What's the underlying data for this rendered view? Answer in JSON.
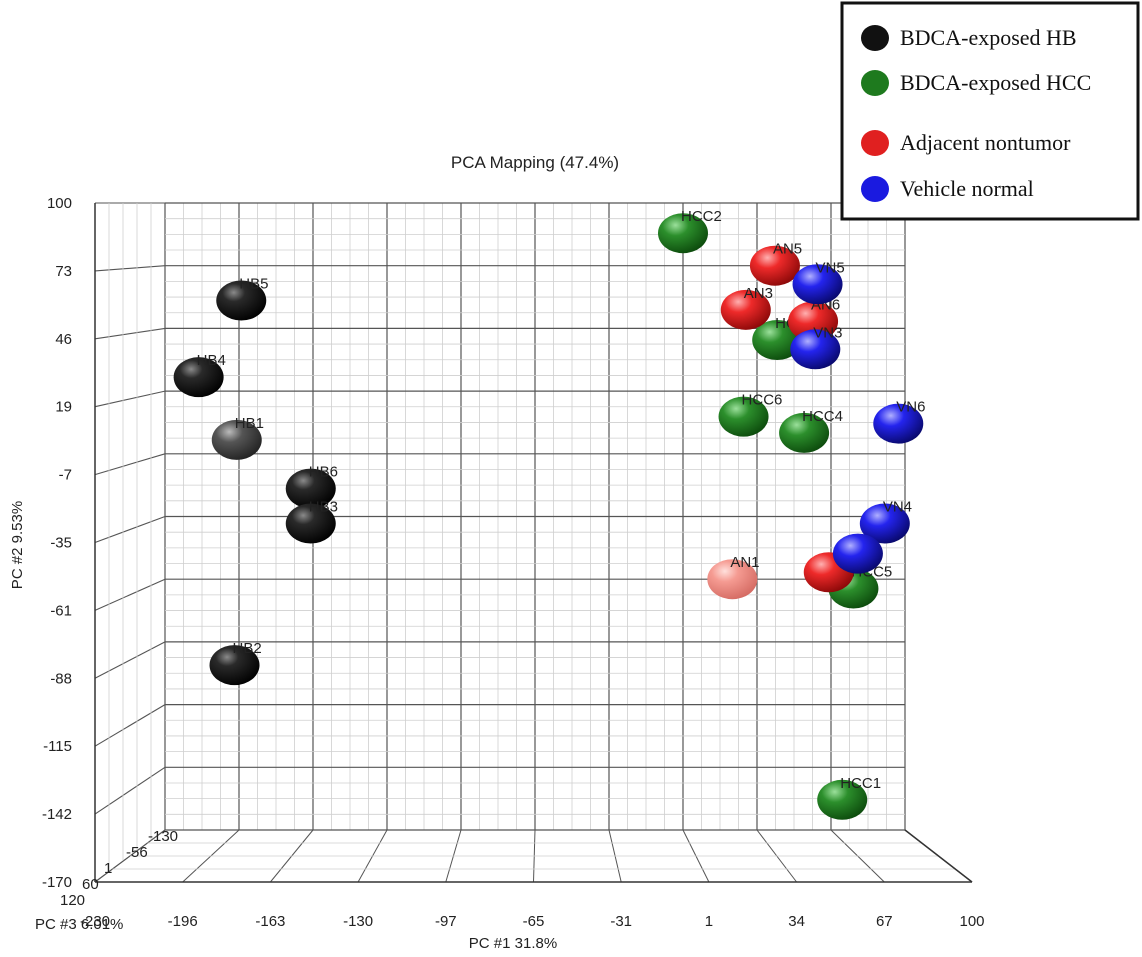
{
  "chart_data": {
    "type": "scatter",
    "title": "PCA Mapping (47.4%)",
    "xlabel": "PC #1 31.8%",
    "ylabel": "PC #2 9.53%",
    "zlabel": "PC #3 6.01%",
    "xlim": [
      -230,
      100
    ],
    "ylim": [
      -170,
      100
    ],
    "x_ticks": [
      "-230",
      "-196",
      "-163",
      "-130",
      "-97",
      "-65",
      "-31",
      "1",
      "34",
      "67",
      "100"
    ],
    "y_ticks": [
      "100",
      "73",
      "46",
      "19",
      "-7",
      "-35",
      "-61",
      "-88",
      "-115",
      "-142",
      "-170"
    ],
    "z_ticks": [
      "120",
      "60",
      "1",
      "-56",
      "-130"
    ],
    "grid": true,
    "legend_position": "top-right",
    "series": [
      {
        "name": "BDCA-exposed HB",
        "color": "#111111",
        "points": [
          {
            "label": "HB5",
            "x": -196,
            "y": 58
          },
          {
            "label": "HB4",
            "x": -215,
            "y": 25
          },
          {
            "label": "HB1",
            "x": -198,
            "y": -2
          },
          {
            "label": "HB6",
            "x": -165,
            "y": -23
          },
          {
            "label": "HB3",
            "x": -165,
            "y": -38
          },
          {
            "label": "HB2",
            "x": -199,
            "y": -99
          }
        ]
      },
      {
        "name": "BDCA-exposed HCC",
        "color": "#1e7a1e",
        "points": [
          {
            "label": "HCC2",
            "x": 1,
            "y": 87
          },
          {
            "label": "HCC3",
            "x": 43,
            "y": 41
          },
          {
            "label": "HCC6",
            "x": 28,
            "y": 8
          },
          {
            "label": "HCC4",
            "x": 55,
            "y": 1
          },
          {
            "label": "HCC5",
            "x": 77,
            "y": -66
          },
          {
            "label": "HCC1",
            "x": 72,
            "y": -157
          }
        ]
      },
      {
        "name": "Adjacent nontumor",
        "color": "#e02020",
        "points": [
          {
            "label": "AN5",
            "x": 42,
            "y": 73
          },
          {
            "label": "AN3",
            "x": 29,
            "y": 54
          },
          {
            "label": "AN6",
            "x": 59,
            "y": 49
          },
          {
            "label": "AN1",
            "x": 23,
            "y": -62
          },
          {
            "label": "",
            "x": 66,
            "y": -59
          }
        ]
      },
      {
        "name": "Vehicle normal",
        "color": "#1a1ae0",
        "points": [
          {
            "label": "VN5",
            "x": 61,
            "y": 65
          },
          {
            "label": "VN3",
            "x": 60,
            "y": 37
          },
          {
            "label": "VN6",
            "x": 97,
            "y": 5
          },
          {
            "label": "VN4",
            "x": 91,
            "y": -38
          },
          {
            "label": "",
            "x": 79,
            "y": -51
          }
        ]
      }
    ]
  }
}
